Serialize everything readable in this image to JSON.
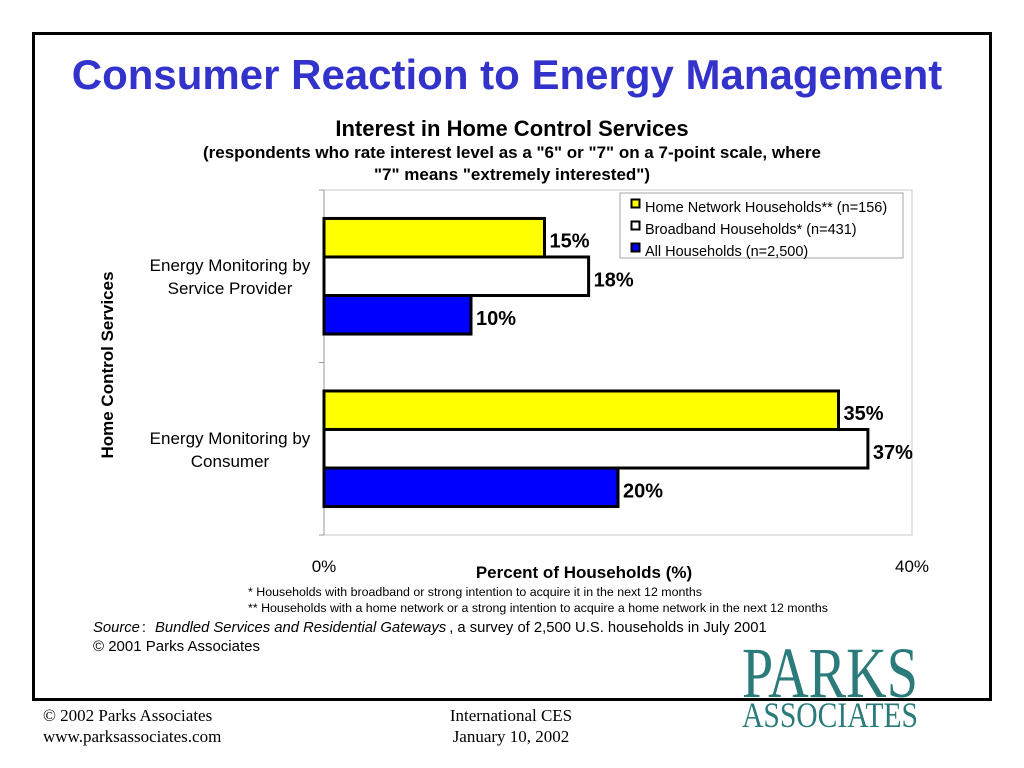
{
  "slide": {
    "title": "Consumer Reaction to Energy Management",
    "title_color": "#3333cc"
  },
  "chart_data": {
    "type": "bar",
    "orientation": "horizontal",
    "title": "Interest in Home Control Services",
    "subtitle": [
      "(respondents who rate interest level as a \"6\" or \"7\" on a 7-point scale, where",
      "\"7\" means \"extremely interested\")"
    ],
    "categories": [
      "Energy Monitoring by Service Provider",
      "Energy Monitoring by Consumer"
    ],
    "series": [
      {
        "name": "Home Network Households** (n=156)",
        "values": [
          15,
          35
        ],
        "labels": [
          "15%",
          "35%"
        ],
        "color": "#ffff00"
      },
      {
        "name": "Broadband Households* (n=431)",
        "values": [
          18,
          37
        ],
        "labels": [
          "18%",
          "37%"
        ],
        "color": "#ffffff"
      },
      {
        "name": "All Households (n=2,500)",
        "values": [
          10,
          20
        ],
        "labels": [
          "10%",
          "20%"
        ],
        "color": "#0000ff"
      }
    ],
    "xlabel": "Percent of Households (%)",
    "ylabel": "Home Control Services",
    "xlim": [
      0,
      40
    ],
    "xticks": [
      0,
      40
    ],
    "xtick_labels": [
      "0%",
      "40%"
    ],
    "legend_position": "top-right",
    "grid": false,
    "bar_outline_color": "#000000"
  },
  "notes": {
    "footnotes": [
      "* Households with broadband or strong intention to acquire it in the next 12 months",
      "** Households with a home network or a strong intention to acquire a home network in the next 12 months"
    ],
    "source_label": "Source",
    "source_separator": ":",
    "source_title": "Bundled Services and Residential Gateways",
    "source_rest": ", a survey of 2,500 U.S. households in July 2001",
    "copyright": "© 2001 Parks Associates"
  },
  "logo": {
    "line1": "PARKS",
    "line2": "ASSOCIATES",
    "color": "#2b7b7b"
  },
  "footer": {
    "left": [
      "© 2002 Parks Associates",
      "www.parksassociates.com"
    ],
    "center": [
      "International CES",
      "January 10, 2002"
    ]
  }
}
